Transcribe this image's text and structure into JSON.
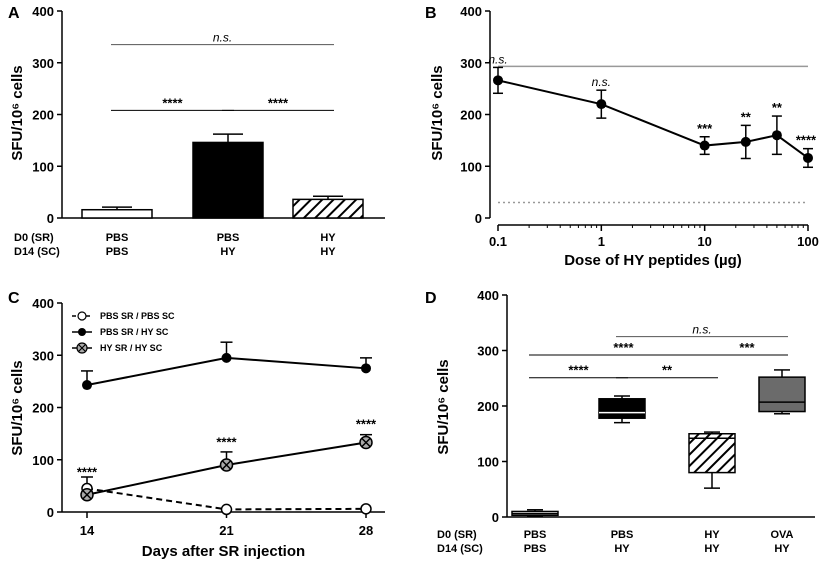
{
  "chart_data": [
    {
      "panel": "A",
      "type": "bar",
      "ylabel": "SFU/10⁶ cells",
      "ylim": [
        0,
        400
      ],
      "yticks": [
        "0",
        "100",
        "200",
        "300",
        "400"
      ],
      "row_labels": [
        "D0 (SR)",
        "D14 (SC)"
      ],
      "categories": [
        {
          "top": "PBS",
          "bottom": "PBS",
          "value": 16,
          "err": 5,
          "fill": "white"
        },
        {
          "top": "PBS",
          "bottom": "HY",
          "value": 146,
          "err": 16,
          "fill": "black"
        },
        {
          "top": "HY",
          "bottom": "HY",
          "value": 36,
          "err": 6,
          "fill": "hatch"
        }
      ],
      "comparisons": [
        {
          "from": 0,
          "to": 2,
          "y": 335,
          "label": "n.s."
        },
        {
          "from": 0,
          "to": 1,
          "y": 208,
          "label": "****"
        },
        {
          "from": 1,
          "to": 2,
          "y": 208,
          "label": "****"
        }
      ]
    },
    {
      "panel": "B",
      "type": "line",
      "xscale": "log",
      "xlabel": "Dose of HY peptides (µg)",
      "ylabel": "SFU/10⁶ cells",
      "ylim": [
        0,
        400
      ],
      "xlim": [
        0.1,
        100
      ],
      "yticks": [
        "0",
        "100",
        "200",
        "300",
        "400"
      ],
      "xticks": [
        {
          "value": 0.1,
          "label": "0.1"
        },
        {
          "value": 1,
          "label": "1"
        },
        {
          "value": 10,
          "label": "10"
        },
        {
          "value": 100,
          "label": "100"
        }
      ],
      "points": [
        {
          "x": 0.1,
          "y": 266,
          "err": 25,
          "label": "n.s."
        },
        {
          "x": 1,
          "y": 220,
          "err": 27,
          "label": "n.s."
        },
        {
          "x": 10,
          "y": 140,
          "err": 17,
          "label": "***"
        },
        {
          "x": 25,
          "y": 147,
          "err": 32,
          "label": "**"
        },
        {
          "x": 50,
          "y": 160,
          "err": 37,
          "label": "**"
        },
        {
          "x": 100,
          "y": 116,
          "err": 18,
          "label": "****"
        }
      ],
      "reference_line": 293,
      "baseline_dotted": 30
    },
    {
      "panel": "C",
      "type": "line",
      "xlabel": "Days after SR injection",
      "ylabel": "SFU/10⁶ cells",
      "ylim": [
        0,
        400
      ],
      "yticks": [
        "0",
        "100",
        "200",
        "300",
        "400"
      ],
      "x": [
        14,
        21,
        28
      ],
      "xtick_labels": [
        "14",
        "21",
        "28"
      ],
      "series": [
        {
          "name": "PBS SR / PBS SC",
          "marker": "open",
          "dashed": true,
          "values": [
            45,
            5,
            6
          ],
          "err": [
            22,
            0,
            0
          ]
        },
        {
          "name": "PBS SR / HY SC",
          "marker": "filled",
          "dashed": false,
          "values": [
            243,
            295,
            275
          ],
          "err": [
            27,
            30,
            20
          ]
        },
        {
          "name": "HY SR  / HY SC",
          "marker": "cross",
          "dashed": false,
          "values": [
            33,
            90,
            133
          ],
          "err": [
            5,
            25,
            15
          ]
        }
      ],
      "annotations": [
        {
          "x": 14,
          "y": 68,
          "label": "****"
        },
        {
          "x": 21,
          "y": 125,
          "label": "****"
        },
        {
          "x": 28,
          "y": 160,
          "label": "****"
        }
      ]
    },
    {
      "panel": "D",
      "type": "box",
      "ylabel": "SFU/10⁶ cells",
      "ylim": [
        0,
        400
      ],
      "yticks": [
        "0",
        "100",
        "200",
        "300",
        "400"
      ],
      "row_labels": [
        "D0 (SR)",
        "D14 (SC)"
      ],
      "categories": [
        {
          "top": "PBS",
          "bottom": "PBS",
          "min": 2,
          "q1": 3,
          "median": 6,
          "q3": 10,
          "max": 13,
          "fill": "white"
        },
        {
          "top": "PBS",
          "bottom": "HY",
          "min": 170,
          "q1": 178,
          "median": 188,
          "q3": 213,
          "max": 218,
          "fill": "black"
        },
        {
          "top": "HY",
          "bottom": "HY",
          "min": 52,
          "q1": 80,
          "median": 142,
          "q3": 150,
          "max": 153,
          "fill": "hatch"
        },
        {
          "top": "OVA",
          "bottom": "HY",
          "min": 186,
          "q1": 190,
          "median": 207,
          "q3": 252,
          "max": 265,
          "fill": "gray"
        }
      ],
      "comparisons": [
        {
          "from": 1,
          "to": 3,
          "y": 325,
          "label": "n.s."
        },
        {
          "from": 0,
          "to": 2,
          "y": 292,
          "label": "****"
        },
        {
          "from": 2,
          "to": 3,
          "y": 292,
          "label": "***"
        },
        {
          "from": 0,
          "to": 1,
          "y": 251,
          "label": "****"
        },
        {
          "from": 1,
          "to": 2,
          "y": 251,
          "label": "**"
        }
      ]
    }
  ]
}
